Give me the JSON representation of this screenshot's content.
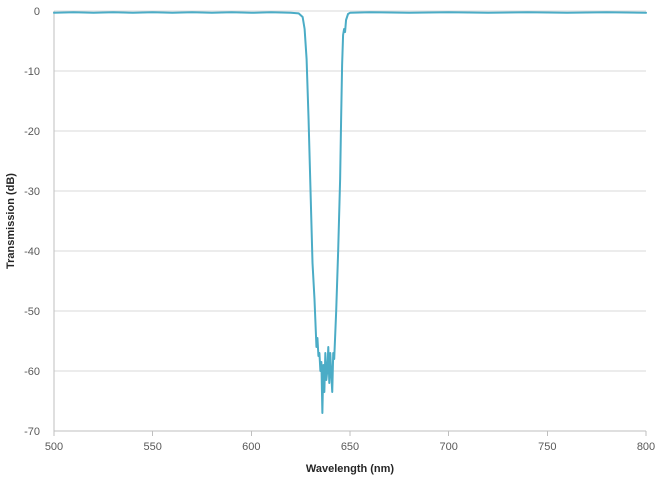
{
  "chart_data": {
    "type": "line",
    "title": "",
    "xlabel": "Wavelength (nm)",
    "ylabel": "Transmission (dB)",
    "xlim": [
      500,
      800
    ],
    "ylim": [
      -70,
      0
    ],
    "x_ticks": [
      500,
      550,
      600,
      650,
      700,
      750,
      800
    ],
    "y_ticks": [
      0,
      -10,
      -20,
      -30,
      -40,
      -50,
      -60,
      -70
    ],
    "grid": true,
    "legend": "none",
    "series": [
      {
        "color": "#4bacc6",
        "points": [
          [
            500,
            -0.3
          ],
          [
            510,
            -0.2
          ],
          [
            520,
            -0.3
          ],
          [
            530,
            -0.2
          ],
          [
            540,
            -0.3
          ],
          [
            550,
            -0.2
          ],
          [
            560,
            -0.3
          ],
          [
            570,
            -0.2
          ],
          [
            580,
            -0.3
          ],
          [
            590,
            -0.2
          ],
          [
            600,
            -0.3
          ],
          [
            610,
            -0.2
          ],
          [
            620,
            -0.3
          ],
          [
            624,
            -0.4
          ],
          [
            626,
            -1.0
          ],
          [
            627,
            -3.0
          ],
          [
            628,
            -8.0
          ],
          [
            629,
            -18.0
          ],
          [
            630,
            -30.0
          ],
          [
            631,
            -42.0
          ],
          [
            632,
            -48.0
          ],
          [
            633,
            -56.0
          ],
          [
            633.5,
            -54.5
          ],
          [
            634,
            -57.5
          ],
          [
            634.5,
            -57.0
          ],
          [
            635,
            -60.0
          ],
          [
            635.5,
            -58.5
          ],
          [
            636,
            -67.0
          ],
          [
            636.5,
            -59.0
          ],
          [
            637,
            -63.5
          ],
          [
            637.5,
            -57.0
          ],
          [
            638,
            -61.5
          ],
          [
            638.5,
            -60.0
          ],
          [
            639,
            -56.0
          ],
          [
            639.5,
            -62.0
          ],
          [
            640,
            -57.0
          ],
          [
            640.5,
            -60.5
          ],
          [
            641,
            -63.5
          ],
          [
            641.5,
            -57.0
          ],
          [
            642,
            -58.0
          ],
          [
            643,
            -50.0
          ],
          [
            644,
            -40.0
          ],
          [
            645,
            -28.0
          ],
          [
            645.5,
            -18.0
          ],
          [
            646,
            -9.0
          ],
          [
            646.5,
            -4.0
          ],
          [
            647,
            -3.0
          ],
          [
            647.5,
            -3.5
          ],
          [
            648,
            -1.5
          ],
          [
            649,
            -0.5
          ],
          [
            650,
            -0.3
          ],
          [
            660,
            -0.2
          ],
          [
            680,
            -0.3
          ],
          [
            700,
            -0.2
          ],
          [
            720,
            -0.3
          ],
          [
            740,
            -0.2
          ],
          [
            760,
            -0.3
          ],
          [
            780,
            -0.2
          ],
          [
            800,
            -0.3
          ]
        ]
      }
    ]
  }
}
